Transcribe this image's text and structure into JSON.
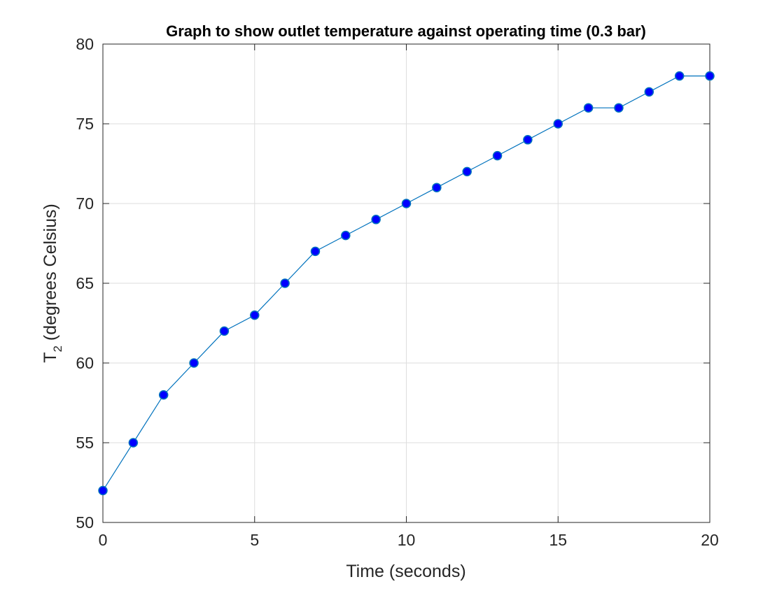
{
  "chart_data": {
    "type": "line",
    "title": "Graph to show outlet temperature against operating time (0.3 bar)",
    "xlabel": "Time (seconds)",
    "ylabel_main": "T",
    "ylabel_sub": "2",
    "ylabel_rest": " (degrees Celsius)",
    "xlim": [
      0,
      20
    ],
    "ylim": [
      50,
      80
    ],
    "xticks": [
      0,
      5,
      10,
      15,
      20
    ],
    "yticks": [
      50,
      55,
      60,
      65,
      70,
      75,
      80
    ],
    "grid": true,
    "line_color": "#0072BD",
    "marker_color": "#0000FF",
    "series": [
      {
        "x": [
          0,
          1,
          2,
          3,
          4,
          5,
          6,
          7,
          8,
          9,
          10,
          11,
          12,
          13,
          14,
          15,
          16,
          17,
          18,
          19,
          20
        ],
        "y": [
          52,
          55,
          58,
          60,
          62,
          63,
          65,
          67,
          68,
          69,
          70,
          71,
          72,
          73,
          74,
          75,
          76,
          76,
          77,
          78,
          78
        ]
      }
    ]
  }
}
